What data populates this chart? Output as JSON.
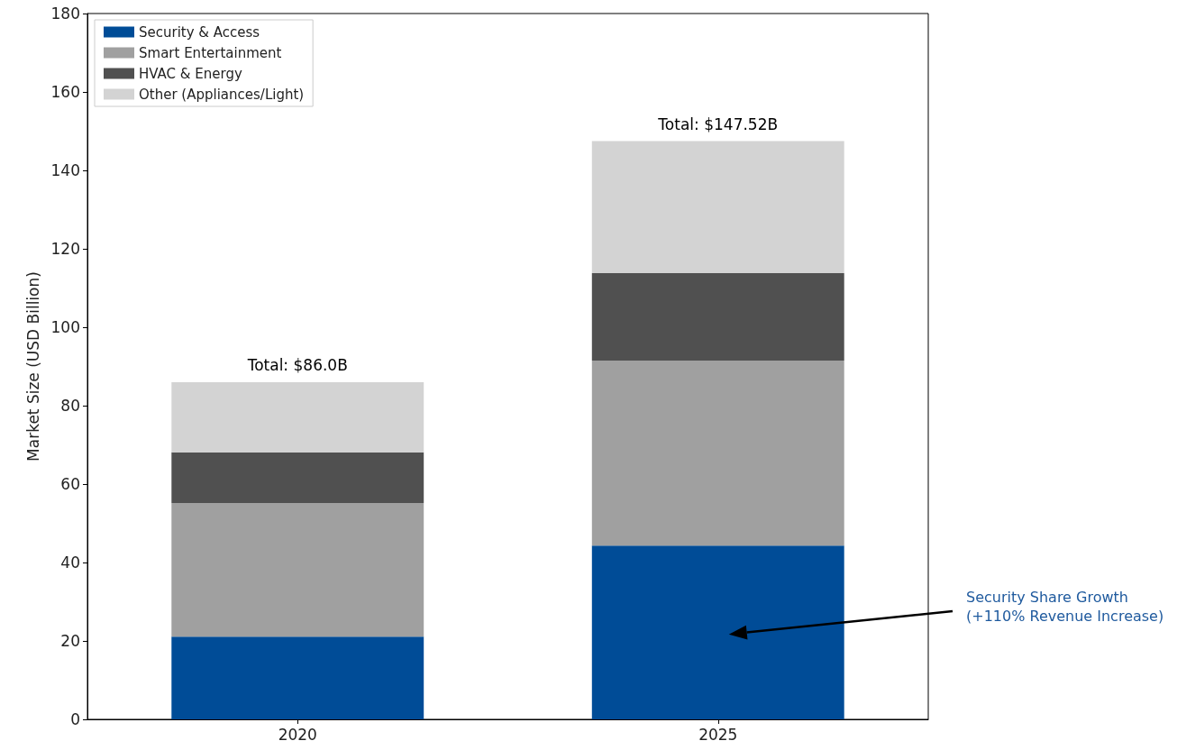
{
  "chart_data": {
    "type": "bar",
    "stacked": true,
    "ylabel": "Market Size (USD Billion)",
    "categories": [
      "2020",
      "2025"
    ],
    "series": [
      {
        "name": "Security & Access",
        "color": "#004c97",
        "values": [
          21.1,
          44.3
        ]
      },
      {
        "name": "Smart Entertainment",
        "color": "#a0a0a0",
        "values": [
          34.1,
          47.2
        ]
      },
      {
        "name": "HVAC & Energy",
        "color": "#505050",
        "values": [
          12.9,
          22.3
        ]
      },
      {
        "name": "Other (Appliances/Light)",
        "color": "#d3d3d3",
        "values": [
          17.9,
          33.7
        ]
      }
    ],
    "totals": [
      "Total: $86.0B",
      "Total: $147.52B"
    ],
    "ylim": [
      0,
      180
    ],
    "yticks": [
      0,
      20,
      40,
      60,
      80,
      100,
      120,
      140,
      160,
      180
    ],
    "grid": false,
    "legend": "top left",
    "annotations": [
      "Security Share Growth\n(+110% Revenue Increase)"
    ]
  }
}
